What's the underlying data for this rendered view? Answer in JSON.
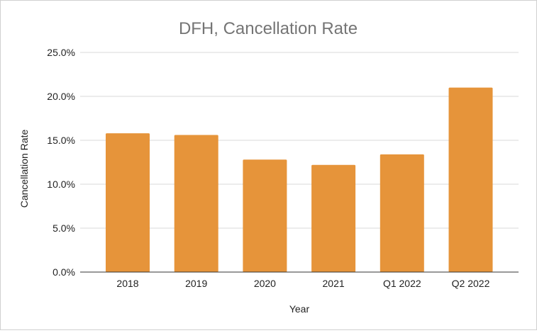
{
  "chart_data": {
    "type": "bar",
    "title": "DFH, Cancellation Rate",
    "xlabel": "Year",
    "ylabel": "Cancellation Rate",
    "categories": [
      "2018",
      "2019",
      "2020",
      "2021",
      "Q1 2022",
      "Q2 2022"
    ],
    "values": [
      15.8,
      15.6,
      12.8,
      12.2,
      13.4,
      21.0
    ],
    "unit": "%",
    "ylim": [
      0,
      25
    ],
    "yticks": [
      "0.0%",
      "5.0%",
      "10.0%",
      "15.0%",
      "20.0%",
      "25.0%"
    ],
    "ytick_values": [
      0,
      5,
      10,
      15,
      20,
      25
    ],
    "grid": true,
    "legend": "none",
    "colors": {
      "bar": "#e6943a",
      "grid": "#d9d9d9",
      "axis": "#333333",
      "title": "#757575",
      "text": "#222222"
    }
  }
}
